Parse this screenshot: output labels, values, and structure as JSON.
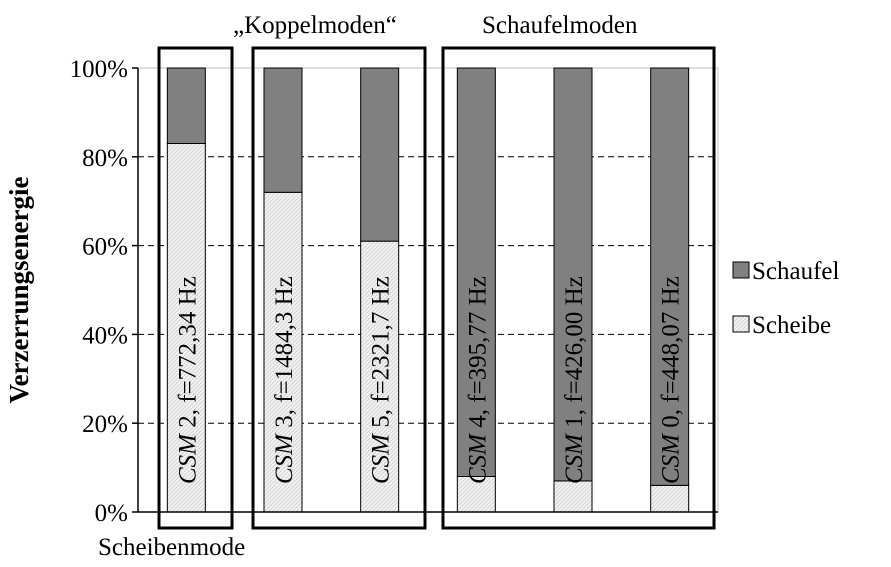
{
  "chart_data": {
    "type": "bar",
    "stacked": true,
    "orientation": "vertical",
    "ylabel": "Verzerrungsenergie",
    "ylim": [
      0,
      100
    ],
    "yticks": [
      "0%",
      "20%",
      "40%",
      "60%",
      "80%",
      "100%"
    ],
    "grid": "horizontal dashed",
    "legend_position": "right",
    "categories": [
      {
        "mode": "CSM",
        "num": " 2, f=772,34 Hz"
      },
      {
        "mode": "CSM",
        "num": " 3, f=1484,3 Hz"
      },
      {
        "mode": "CSM",
        "num": " 5, f=2321,7 Hz"
      },
      {
        "mode": "CSM",
        "num": " 4, f=395,77 Hz"
      },
      {
        "mode": "CSM",
        "num": " 1, f=426,00 Hz"
      },
      {
        "mode": "CSM",
        "num": " 0, f=448,07 Hz"
      }
    ],
    "series": [
      {
        "name": "Scheibe",
        "color": "#f2f2f2",
        "pattern": "light-hatch",
        "values": [
          83,
          72,
          61,
          8,
          7,
          6
        ]
      },
      {
        "name": "Schaufel",
        "color": "#808080",
        "values": [
          17,
          28,
          39,
          92,
          93,
          94
        ]
      }
    ],
    "legend_order": [
      "Schaufel",
      "Scheibe"
    ],
    "group_labels": {
      "scheibenmode": "Scheibenmode",
      "koppelmoden": "„Koppelmoden“",
      "schaufelmoden": "Schaufelmoden"
    }
  }
}
